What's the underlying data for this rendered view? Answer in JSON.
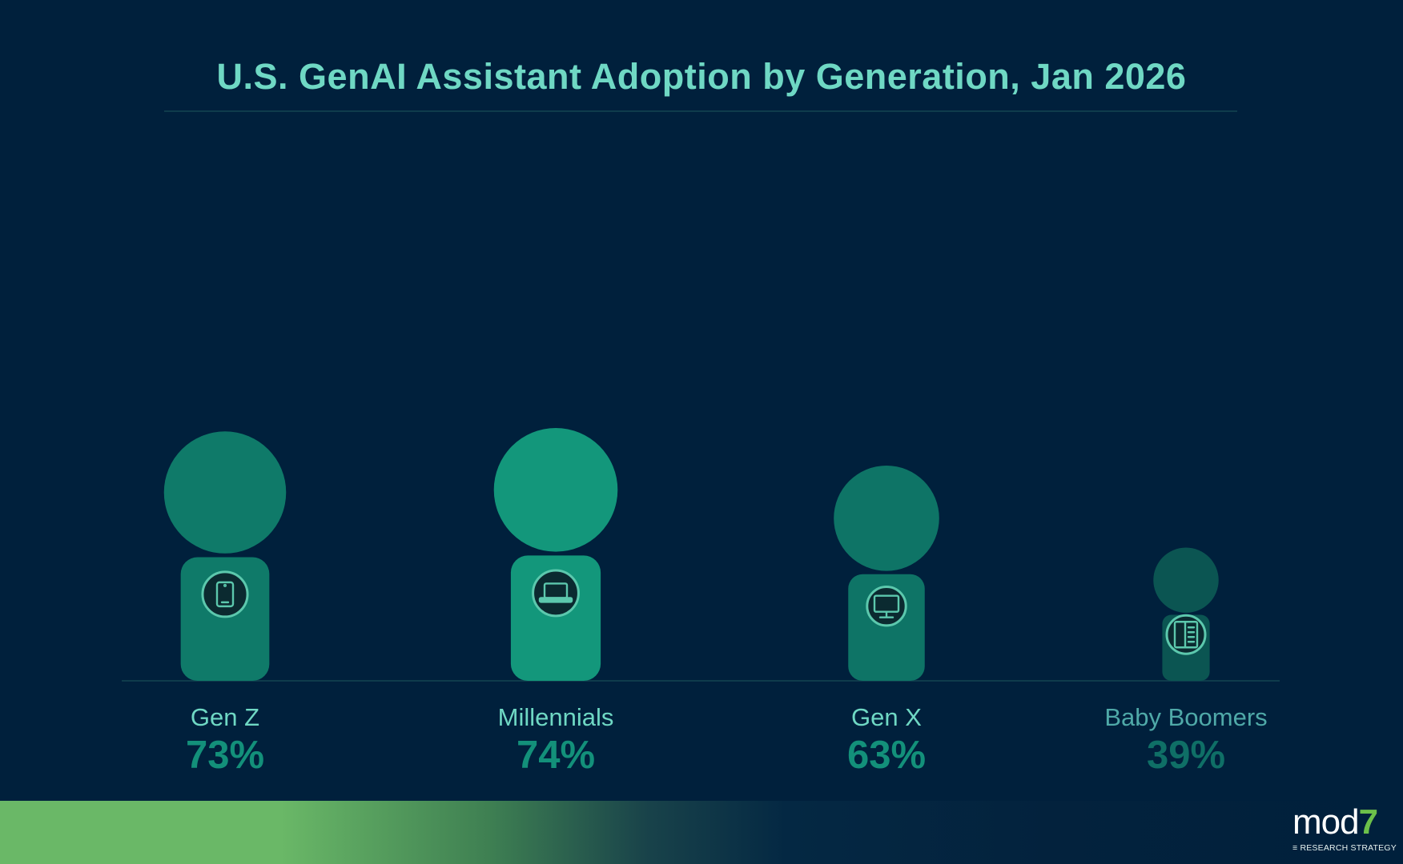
{
  "title": "U.S. GenAI Assistant Adoption by Generation, Jan 2026",
  "colors": {
    "background": "#00203c",
    "title": "#6fd8c4",
    "rule": "#0f3b4c",
    "icon_fill": "#0b2a30",
    "icon_stroke": "#5cc8ad"
  },
  "chart_data": {
    "type": "bar",
    "style": "pictograph-person",
    "title": "U.S. GenAI Assistant Adoption by Generation, Jan 2026",
    "categories": [
      "Gen Z",
      "Millennials",
      "Gen X",
      "Baby Boomers"
    ],
    "values": [
      73,
      74,
      63,
      39
    ],
    "value_labels": [
      "73%",
      "74%",
      "63%",
      "39%"
    ],
    "ylim": [
      0,
      100
    ],
    "grid": false,
    "legend": "none",
    "icons": [
      "tablet-icon",
      "laptop-icon",
      "desktop-monitor-icon",
      "e-reader-icon"
    ],
    "bar_colors": [
      "#0f7a69",
      "#13977b",
      "#0e7466",
      "#0b5552"
    ],
    "label_colors": [
      "#6fd8c4",
      "#6fd8c4",
      "#6fd8c4",
      "#4fa9a8"
    ],
    "value_colors": [
      "#13907a",
      "#13907a",
      "#13907a",
      "#0f6f66"
    ]
  },
  "logo": {
    "brand": "mod",
    "brand_suffix": "7",
    "tagline": "≡ RESEARCH STRATEGY"
  }
}
